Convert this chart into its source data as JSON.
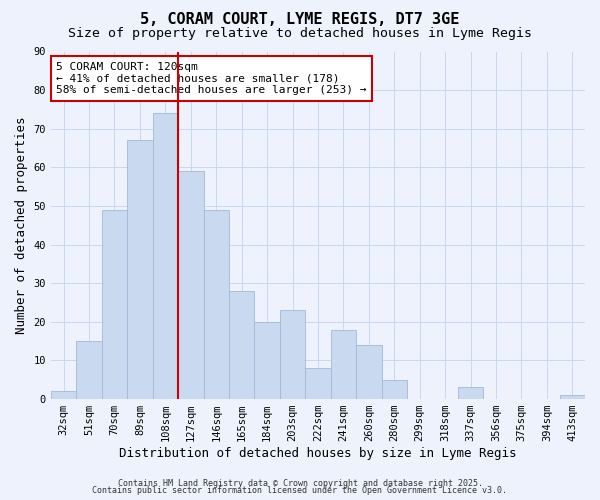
{
  "title": "5, CORAM COURT, LYME REGIS, DT7 3GE",
  "subtitle": "Size of property relative to detached houses in Lyme Regis",
  "xlabel": "Distribution of detached houses by size in Lyme Regis",
  "ylabel": "Number of detached properties",
  "categories": [
    "32sqm",
    "51sqm",
    "70sqm",
    "89sqm",
    "108sqm",
    "127sqm",
    "146sqm",
    "165sqm",
    "184sqm",
    "203sqm",
    "222sqm",
    "241sqm",
    "260sqm",
    "280sqm",
    "299sqm",
    "318sqm",
    "337sqm",
    "356sqm",
    "375sqm",
    "394sqm",
    "413sqm"
  ],
  "values": [
    2,
    15,
    49,
    67,
    74,
    59,
    49,
    28,
    20,
    23,
    8,
    18,
    14,
    5,
    0,
    0,
    3,
    0,
    0,
    0,
    1
  ],
  "bar_color": "#c9d9f0",
  "bar_edge_color": "#a0b8d8",
  "grid_color": "#c8d8ee",
  "red_line_color": "#cc0000",
  "red_line_x": 4.5,
  "annotation_text": "5 CORAM COURT: 120sqm\n← 41% of detached houses are smaller (178)\n58% of semi-detached houses are larger (253) →",
  "annotation_box_color": "#ffffff",
  "annotation_box_edge_color": "#cc0000",
  "ylim": [
    0,
    90
  ],
  "yticks": [
    0,
    10,
    20,
    30,
    40,
    50,
    60,
    70,
    80,
    90
  ],
  "footer1": "Contains HM Land Registry data © Crown copyright and database right 2025.",
  "footer2": "Contains public sector information licensed under the Open Government Licence v3.0.",
  "background_color": "#eef2fc",
  "title_fontsize": 11,
  "subtitle_fontsize": 9.5,
  "axis_label_fontsize": 9,
  "tick_fontsize": 7.5,
  "annotation_fontsize": 8,
  "footer_fontsize": 6
}
